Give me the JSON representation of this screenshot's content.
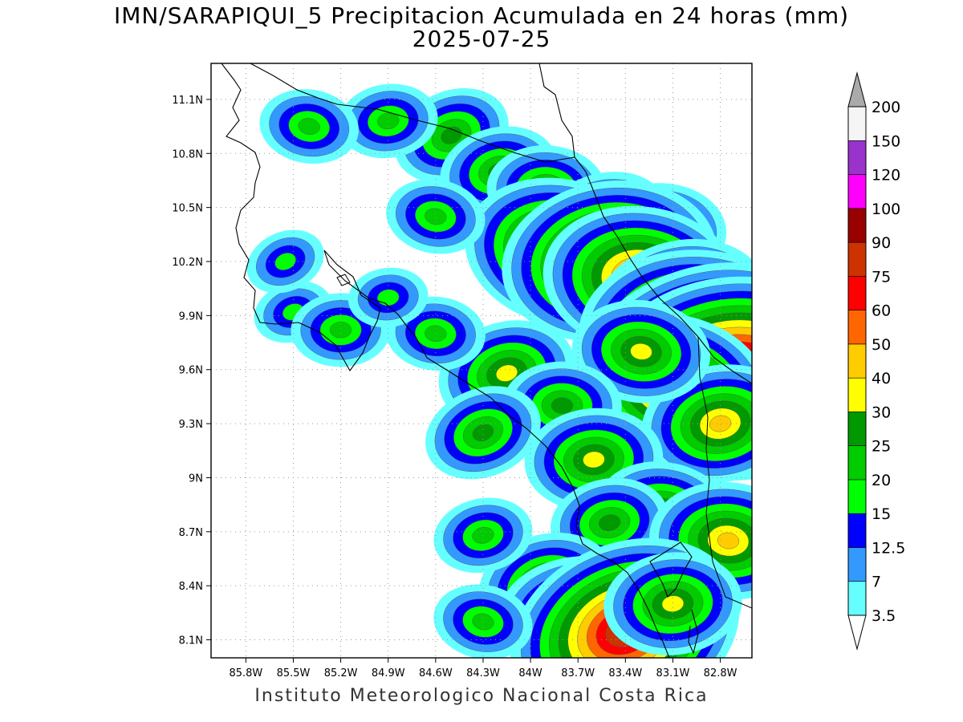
{
  "title_line1": "IMN/SARAPIQUI_5 Precipitacion Acumulada en 24 horas (mm)",
  "title_line2": "2025-07-25",
  "footer": "Instituto Meteorologico Nacional Costa Rica",
  "map": {
    "lon_range": [
      -86.02,
      -82.6
    ],
    "lat_range": [
      8.0,
      11.3
    ],
    "lat_ticks": [
      {
        "value": 11.1,
        "label": "11.1N"
      },
      {
        "value": 10.8,
        "label": "10.8N"
      },
      {
        "value": 10.5,
        "label": "10.5N"
      },
      {
        "value": 10.2,
        "label": "10.2N"
      },
      {
        "value": 9.9,
        "label": "9.9N"
      },
      {
        "value": 9.6,
        "label": "9.6N"
      },
      {
        "value": 9.3,
        "label": "9.3N"
      },
      {
        "value": 9.0,
        "label": "9N"
      },
      {
        "value": 8.7,
        "label": "8.7N"
      },
      {
        "value": 8.4,
        "label": "8.4N"
      },
      {
        "value": 8.1,
        "label": "8.1N"
      }
    ],
    "lon_ticks": [
      {
        "value": -85.8,
        "label": "85.8W"
      },
      {
        "value": -85.5,
        "label": "85.5W"
      },
      {
        "value": -85.2,
        "label": "85.2W"
      },
      {
        "value": -84.9,
        "label": "84.9W"
      },
      {
        "value": -84.6,
        "label": "84.6W"
      },
      {
        "value": -84.3,
        "label": "84.3W"
      },
      {
        "value": -84.0,
        "label": "84W"
      },
      {
        "value": -83.7,
        "label": "83.7W"
      },
      {
        "value": -83.4,
        "label": "83.4W"
      },
      {
        "value": -83.1,
        "label": "83.1W"
      },
      {
        "value": -82.8,
        "label": "82.8W"
      }
    ],
    "grid": "dotted"
  },
  "legend": {
    "levels": [
      {
        "label": "3.5",
        "color": "#66ffff"
      },
      {
        "label": "7",
        "color": "#3399ff"
      },
      {
        "label": "12.5",
        "color": "#0000ff"
      },
      {
        "label": "15",
        "color": "#00ff00"
      },
      {
        "label": "20",
        "color": "#00cc00"
      },
      {
        "label": "25",
        "color": "#009900"
      },
      {
        "label": "30",
        "color": "#ffff00"
      },
      {
        "label": "40",
        "color": "#ffcc00"
      },
      {
        "label": "50",
        "color": "#ff6600"
      },
      {
        "label": "60",
        "color": "#ff0000"
      },
      {
        "label": "75",
        "color": "#cc3300"
      },
      {
        "label": "90",
        "color": "#990000"
      },
      {
        "label": "100",
        "color": "#ff00ff"
      },
      {
        "label": "120",
        "color": "#9933cc"
      },
      {
        "label": "150",
        "color": "#f5f5f5"
      },
      {
        "label": "200",
        "color": "#aaaaaa"
      }
    ],
    "band_colors": [
      "#66ffff",
      "#3399ff",
      "#0000ff",
      "#00ff00",
      "#00cc00",
      "#009900",
      "#ffff00",
      "#ffcc00",
      "#ff6600",
      "#ff0000",
      "#cc3300",
      "#990000",
      "#ff00ff",
      "#9933cc",
      "#f5f5f5"
    ],
    "lower_arrow_color": "#ffffff",
    "upper_arrow_color": "#aaaaaa"
  },
  "rain_cells": [
    {
      "lon": -84.5,
      "lat": 10.9,
      "rank": 5
    },
    {
      "lon": -84.9,
      "lat": 10.98,
      "rank": 4
    },
    {
      "lon": -85.4,
      "lat": 10.95,
      "rank": 4
    },
    {
      "lon": -84.2,
      "lat": 10.7,
      "rank": 5
    },
    {
      "lon": -83.9,
      "lat": 10.6,
      "rank": 5
    },
    {
      "lon": -83.55,
      "lat": 10.4,
      "rank": 6
    },
    {
      "lon": -83.2,
      "lat": 10.35,
      "rank": 6
    },
    {
      "lon": -83.8,
      "lat": 10.25,
      "rank": 9
    },
    {
      "lon": -83.5,
      "lat": 10.2,
      "rank": 10
    },
    {
      "lon": -83.3,
      "lat": 10.1,
      "rank": 9
    },
    {
      "lon": -83.05,
      "lat": 9.95,
      "rank": 8
    },
    {
      "lon": -82.95,
      "lat": 9.78,
      "rank": 11
    },
    {
      "lon": -82.9,
      "lat": 9.6,
      "rank": 13
    },
    {
      "lon": -82.7,
      "lat": 9.55,
      "rank": 13
    },
    {
      "lon": -83.1,
      "lat": 9.5,
      "rank": 9
    },
    {
      "lon": -82.8,
      "lat": 9.3,
      "rank": 7
    },
    {
      "lon": -83.3,
      "lat": 9.7,
      "rank": 6
    },
    {
      "lon": -84.15,
      "lat": 9.58,
      "rank": 6
    },
    {
      "lon": -83.8,
      "lat": 9.4,
      "rank": 5
    },
    {
      "lon": -84.3,
      "lat": 9.25,
      "rank": 5
    },
    {
      "lon": -83.6,
      "lat": 9.1,
      "rank": 6
    },
    {
      "lon": -83.15,
      "lat": 8.8,
      "rank": 6
    },
    {
      "lon": -83.5,
      "lat": 8.75,
      "rank": 5
    },
    {
      "lon": -82.75,
      "lat": 8.65,
      "rank": 7
    },
    {
      "lon": -83.9,
      "lat": 8.4,
      "rank": 6
    },
    {
      "lon": -83.65,
      "lat": 8.2,
      "rank": 8
    },
    {
      "lon": -83.4,
      "lat": 8.15,
      "rank": 11
    },
    {
      "lon": -83.1,
      "lat": 8.3,
      "rank": 6
    },
    {
      "lon": -84.3,
      "lat": 8.2,
      "rank": 4
    },
    {
      "lon": -84.3,
      "lat": 8.68,
      "rank": 4
    },
    {
      "lon": -84.6,
      "lat": 9.8,
      "rank": 4
    },
    {
      "lon": -85.5,
      "lat": 9.92,
      "rank": 3
    },
    {
      "lon": -85.2,
      "lat": 9.82,
      "rank": 4
    },
    {
      "lon": -85.55,
      "lat": 10.2,
      "rank": 3
    },
    {
      "lon": -84.9,
      "lat": 10.0,
      "rank": 3
    },
    {
      "lon": -84.6,
      "lat": 10.45,
      "rank": 4
    }
  ]
}
